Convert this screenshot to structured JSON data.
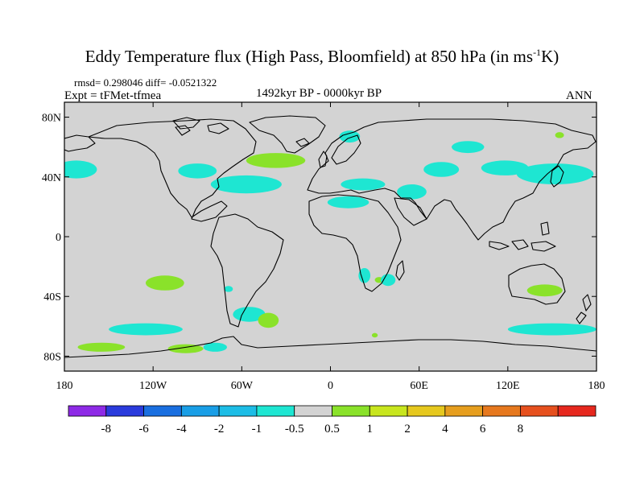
{
  "title": {
    "main": "Eddy Temperature flux (High Pass, Bloomfield) at 850 hPa (in ms",
    "exp": "-1",
    "suffix": "K)"
  },
  "stats": "rmsd= 0.298046 diff= -0.0521322",
  "experiment": "Expt = tFMet-tfmea",
  "period": "1492kyr BP - 0000kyr BP",
  "season": "ANN",
  "map": {
    "lon_range": [
      -180,
      180
    ],
    "lat_range": [
      -90,
      90
    ],
    "lat_ticks": [
      {
        "lat": 80,
        "label": "80N"
      },
      {
        "lat": 40,
        "label": "40N"
      },
      {
        "lat": 0,
        "label": "0"
      },
      {
        "lat": -40,
        "label": "40S"
      },
      {
        "lat": -80,
        "label": "80S"
      }
    ],
    "lon_ticks": [
      {
        "lon": -180,
        "label": "180"
      },
      {
        "lon": -120,
        "label": "120W"
      },
      {
        "lon": -60,
        "label": "60W"
      },
      {
        "lon": 0,
        "label": "0"
      },
      {
        "lon": 60,
        "label": "60E"
      },
      {
        "lon": 120,
        "label": "120E"
      },
      {
        "lon": 180,
        "label": "180"
      }
    ],
    "background_color": "#d3d3d3",
    "anomaly_regions": [
      {
        "name": "npac-east",
        "cls": "neg",
        "lon": -172,
        "lat": 45,
        "rlon": 14,
        "rlat": 6
      },
      {
        "name": "natl-main",
        "cls": "neg",
        "lon": -57,
        "lat": 35,
        "rlon": 24,
        "rlat": 6
      },
      {
        "name": "natl-gulf",
        "cls": "neg",
        "lon": -90,
        "lat": 44,
        "rlon": 13,
        "rlat": 5
      },
      {
        "name": "natl-pos",
        "cls": "pos",
        "lon": -37,
        "lat": 51,
        "rlon": 20,
        "rlat": 5
      },
      {
        "name": "norway",
        "cls": "neg",
        "lon": 13,
        "lat": 67,
        "rlon": 7,
        "rlat": 4
      },
      {
        "name": "med",
        "cls": "neg",
        "lon": 22,
        "lat": 35,
        "rlon": 15,
        "rlat": 4
      },
      {
        "name": "nafrica",
        "cls": "neg",
        "lon": 12,
        "lat": 23,
        "rlon": 14,
        "rlat": 4
      },
      {
        "name": "mideast",
        "cls": "neg",
        "lon": 55,
        "lat": 30,
        "rlon": 10,
        "rlat": 5
      },
      {
        "name": "siberia",
        "cls": "neg",
        "lon": 93,
        "lat": 60,
        "rlon": 11,
        "rlat": 4
      },
      {
        "name": "cent-asia",
        "cls": "neg",
        "lon": 75,
        "lat": 45,
        "rlon": 12,
        "rlat": 5
      },
      {
        "name": "e-asia",
        "cls": "neg",
        "lon": 118,
        "lat": 46,
        "rlon": 16,
        "rlat": 5
      },
      {
        "name": "npac-west",
        "cls": "neg",
        "lon": 152,
        "lat": 42,
        "rlon": 26,
        "rlat": 7
      },
      {
        "name": "arctic-pos",
        "cls": "pos",
        "lon": 155,
        "lat": 68,
        "rlon": 3,
        "rlat": 2
      },
      {
        "name": "spac-pos",
        "cls": "pos",
        "lon": -112,
        "lat": -31,
        "rlon": 13,
        "rlat": 5
      },
      {
        "name": "sam-small",
        "cls": "neg",
        "lon": -69,
        "lat": -35,
        "rlon": 3,
        "rlat": 2
      },
      {
        "name": "patag-neg",
        "cls": "neg",
        "lon": -55,
        "lat": -52,
        "rlon": 11,
        "rlat": 5
      },
      {
        "name": "satl-pos",
        "cls": "pos",
        "lon": -42,
        "lat": -56,
        "rlon": 7,
        "rlat": 5
      },
      {
        "name": "safr-neg",
        "cls": "neg",
        "lon": 23,
        "lat": -26,
        "rlon": 4,
        "rlat": 5
      },
      {
        "name": "safr-pos",
        "cls": "pos",
        "lon": 33,
        "lat": -29,
        "rlon": 3,
        "rlat": 2
      },
      {
        "name": "safr-neg2",
        "cls": "neg",
        "lon": 39,
        "lat": -29,
        "rlon": 5,
        "rlat": 4
      },
      {
        "name": "aus-pos",
        "cls": "pos",
        "lon": 145,
        "lat": -36,
        "rlon": 12,
        "rlat": 4
      },
      {
        "name": "so-pac",
        "cls": "neg",
        "lon": -125,
        "lat": -62,
        "rlon": 25,
        "rlat": 4
      },
      {
        "name": "so-pos1",
        "cls": "pos",
        "lon": -155,
        "lat": -74,
        "rlon": 16,
        "rlat": 3
      },
      {
        "name": "so-pos2",
        "cls": "pos",
        "lon": -98,
        "lat": -75,
        "rlon": 12,
        "rlat": 3
      },
      {
        "name": "so-neg2",
        "cls": "neg",
        "lon": -78,
        "lat": -74,
        "rlon": 8,
        "rlat": 3
      },
      {
        "name": "so-ind",
        "cls": "neg",
        "lon": 150,
        "lat": -62,
        "rlon": 30,
        "rlat": 4
      },
      {
        "name": "so-small",
        "cls": "pos",
        "lon": 30,
        "lat": -66,
        "rlon": 2,
        "rlat": 1.5
      }
    ]
  },
  "colorbar": {
    "colors": [
      "#8e2ae6",
      "#2a3bdc",
      "#1a6fe0",
      "#199ee6",
      "#1dbde6",
      "#1ee6d2",
      "#d3d3d3",
      "#8ae22a",
      "#c8e61e",
      "#e6c81e",
      "#e69e1e",
      "#e6781e",
      "#e6501e",
      "#e6281e"
    ],
    "labels": [
      "-8",
      "-6",
      "-4",
      "-2",
      "-1",
      "-0.5",
      "0.5",
      "1",
      "2",
      "4",
      "6",
      "8"
    ]
  }
}
